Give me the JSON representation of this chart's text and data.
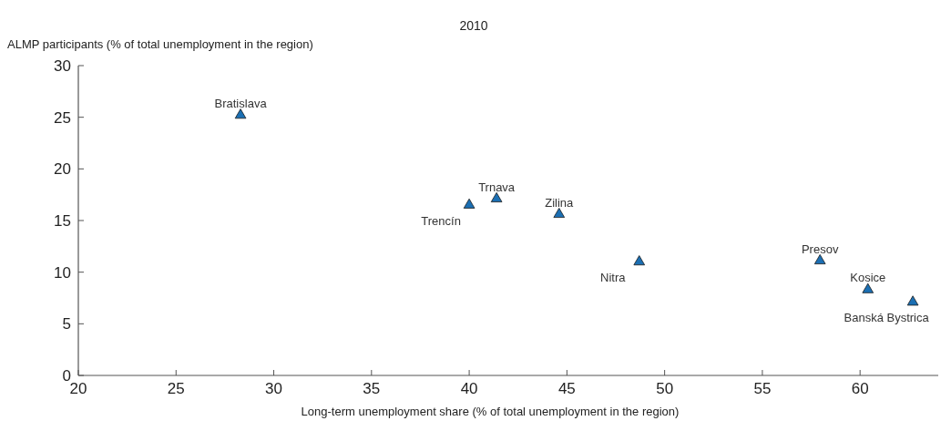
{
  "chart_data": {
    "type": "scatter",
    "subtitle": "2010",
    "xlabel": "Long-term unemployment share (% of total unemployment in the region)",
    "ylabel": "ALMP participants (% of total unemployment in the region)",
    "x": [
      28.3,
      40.0,
      41.4,
      44.6,
      48.7,
      57.95,
      60.4,
      62.7
    ],
    "series": [
      {
        "color": "#1b6fb3",
        "values": [
          25.2,
          16.5,
          17.1,
          15.6,
          11.0,
          11.1,
          8.3,
          7.1
        ]
      }
    ],
    "marker": "triangle",
    "xlim": [
      20,
      64
    ],
    "ylim": [
      0,
      30
    ],
    "xticks": [
      20,
      25,
      30,
      35,
      40,
      45,
      50,
      55,
      60
    ],
    "yticks": [
      0,
      5,
      10,
      15,
      20,
      25,
      30
    ],
    "grid": false,
    "annotations": [
      {
        "text": "Bratislava",
        "x": 28.3,
        "y": 25.2
      },
      {
        "text": "Trencín",
        "x": 40.0,
        "y": 16.5
      },
      {
        "text": "Trnava",
        "x": 41.4,
        "y": 17.1
      },
      {
        "text": "Zilina",
        "x": 44.6,
        "y": 15.6
      },
      {
        "text": "Nitra",
        "x": 48.7,
        "y": 11.0
      },
      {
        "text": "Presov",
        "x": 57.95,
        "y": 11.1
      },
      {
        "text": "Kosice",
        "x": 60.4,
        "y": 8.3
      },
      {
        "text": "Banská Bystrica",
        "x": 62.7,
        "y": 7.1
      }
    ]
  }
}
